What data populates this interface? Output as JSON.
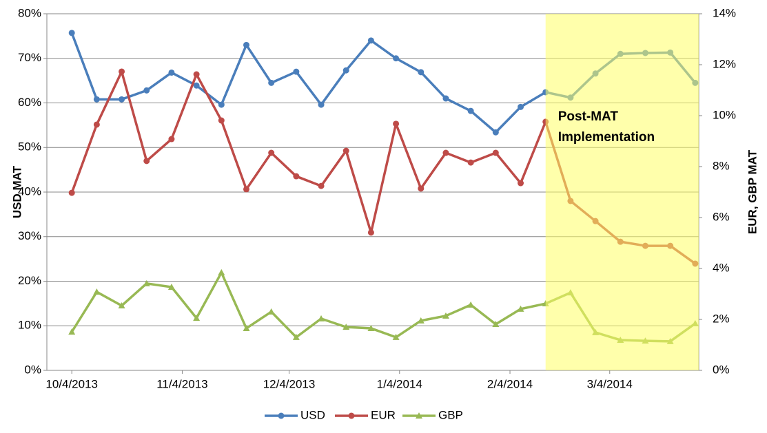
{
  "chart_data": {
    "type": "line",
    "x": [
      "10/4/2013",
      "10/11/2013",
      "10/18/2013",
      "10/25/2013",
      "11/1/2013",
      "11/8/2013",
      "11/15/2013",
      "11/22/2013",
      "11/29/2013",
      "12/6/2013",
      "12/13/2013",
      "12/20/2013",
      "12/27/2013",
      "1/3/2014",
      "1/10/2014",
      "1/17/2014",
      "1/24/2014",
      "1/31/2014",
      "2/7/2014",
      "2/14/2014",
      "2/21/2014",
      "2/28/2014",
      "3/7/2014",
      "3/14/2014",
      "3/21/2014",
      "3/28/2014"
    ],
    "series": [
      {
        "name": "USD",
        "color": "#4a7ebb",
        "marker": "circle",
        "values": [
          75.7,
          60.8,
          60.8,
          62.8,
          66.8,
          63.9,
          59.6,
          73.0,
          64.5,
          67.0,
          59.6,
          67.3,
          74.0,
          70.0,
          66.9,
          61.0,
          58.2,
          53.4,
          59.1,
          62.4,
          61.2,
          66.6,
          71.0,
          71.2,
          71.3,
          64.5
        ]
      },
      {
        "name": "EUR",
        "color": "#be4b48",
        "marker": "circle",
        "axis": "y2",
        "values": [
          6.97,
          9.65,
          11.73,
          8.22,
          9.08,
          11.62,
          9.81,
          7.11,
          8.54,
          7.62,
          7.24,
          8.62,
          5.41,
          9.68,
          7.14,
          8.54,
          8.16,
          8.54,
          7.35,
          9.76,
          6.65,
          5.86,
          5.05,
          4.89,
          4.89,
          4.19
        ]
      },
      {
        "name": "GBP",
        "color": "#98b954",
        "marker": "triangle",
        "axis": "y2",
        "values": [
          1.51,
          3.08,
          2.54,
          3.41,
          3.27,
          2.05,
          3.84,
          1.65,
          2.3,
          1.3,
          2.03,
          1.7,
          1.65,
          1.3,
          1.95,
          2.14,
          2.57,
          1.81,
          2.41,
          2.62,
          3.05,
          1.49,
          1.19,
          1.16,
          1.14,
          1.84
        ]
      }
    ],
    "xlim": [
      "9/27/2013",
      "3/29/2014"
    ],
    "xticks": [
      "10/4/2013",
      "11/4/2013",
      "12/4/2013",
      "1/4/2014",
      "2/4/2014",
      "3/4/2014"
    ],
    "ylabel": "USD MAT",
    "y2label": "EUR, GBP MAT",
    "ylim": [
      0,
      80
    ],
    "yticks": [
      {
        "value": 0,
        "label": "0%"
      },
      {
        "value": 10,
        "label": "10%"
      },
      {
        "value": 20,
        "label": "20%"
      },
      {
        "value": 30,
        "label": "30%"
      },
      {
        "value": 40,
        "label": "40%"
      },
      {
        "value": 50,
        "label": "50%"
      },
      {
        "value": 60,
        "label": "60%"
      },
      {
        "value": 70,
        "label": "70%"
      },
      {
        "value": 80,
        "label": "80%"
      }
    ],
    "y2lim": [
      0,
      14
    ],
    "y2ticks": [
      {
        "value": 0,
        "label": "0%"
      },
      {
        "value": 2,
        "label": "2%"
      },
      {
        "value": 4,
        "label": "4%"
      },
      {
        "value": 6,
        "label": "6%"
      },
      {
        "value": 8,
        "label": "8%"
      },
      {
        "value": 10,
        "label": "10%"
      },
      {
        "value": 12,
        "label": "12%"
      },
      {
        "value": 14,
        "label": "14%"
      }
    ],
    "grid": true,
    "legend": "bottom",
    "shaded_region": {
      "start": "2/14/2014",
      "end": "3/29/2014",
      "color": "#ffff66",
      "text": [
        "Post-MAT",
        "Implementation"
      ]
    }
  }
}
